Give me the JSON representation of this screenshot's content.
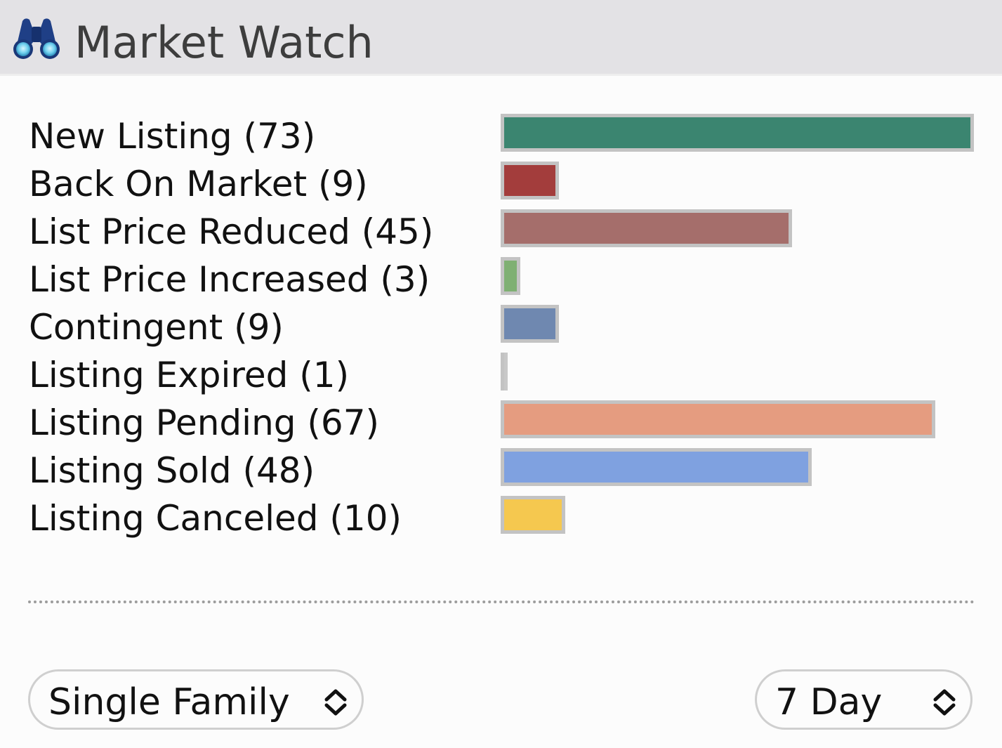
{
  "header": {
    "title": "Market Watch",
    "icon": "binoculars-icon"
  },
  "chart_data": {
    "type": "bar",
    "orientation": "horizontal",
    "categories": [
      "New Listing",
      "Back On Market",
      "List Price Reduced",
      "List Price Increased",
      "Contingent",
      "Listing Expired",
      "Listing Pending",
      "Listing Sold",
      "Listing Canceled"
    ],
    "values": [
      73,
      9,
      45,
      3,
      9,
      1,
      67,
      48,
      10
    ],
    "xlim": [
      0,
      73
    ]
  },
  "rows": [
    {
      "label": "New Listing (73)",
      "value": 73,
      "color": "#3b8570"
    },
    {
      "label": "Back On Market (9)",
      "value": 9,
      "color": "#a33d3c"
    },
    {
      "label": "List Price Reduced (45)",
      "value": 45,
      "color": "#a56e6b"
    },
    {
      "label": "List Price Increased (3)",
      "value": 3,
      "color": "#7fb073"
    },
    {
      "label": "Contingent (9)",
      "value": 9,
      "color": "#6f88b0"
    },
    {
      "label": "Listing Expired (1)",
      "value": 1,
      "color": "#c8c8c8"
    },
    {
      "label": "Listing Pending (67)",
      "value": 67,
      "color": "#e59c80"
    },
    {
      "label": "Listing Sold (48)",
      "value": 48,
      "color": "#7fa1e0"
    },
    {
      "label": "Listing Canceled (10)",
      "value": 10,
      "color": "#f5c84f"
    }
  ],
  "filters": {
    "property_type": {
      "value": "Single Family"
    },
    "period": {
      "value": "7 Day"
    }
  }
}
